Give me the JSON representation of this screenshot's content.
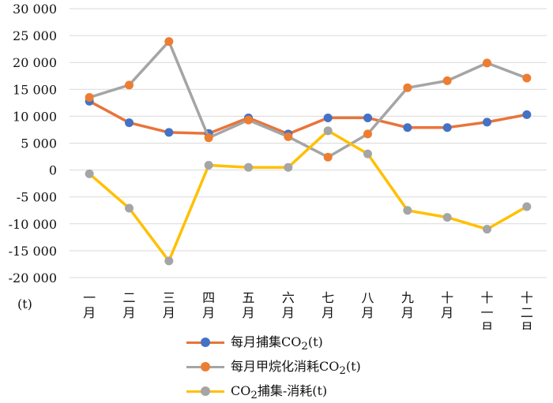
{
  "chart_data": {
    "type": "line",
    "categories": [
      [
        "一",
        "月"
      ],
      [
        "二",
        "月"
      ],
      [
        "三",
        "月"
      ],
      [
        "四",
        "月"
      ],
      [
        "五",
        "月"
      ],
      [
        "六",
        "月"
      ],
      [
        "七",
        "月"
      ],
      [
        "八",
        "月"
      ],
      [
        "九",
        "月"
      ],
      [
        "十",
        "月"
      ],
      [
        "十",
        "一",
        "月"
      ],
      [
        "十",
        "二",
        "月"
      ]
    ],
    "y_ticks": [
      {
        "value": 30000,
        "label": "30 000"
      },
      {
        "value": 25000,
        "label": "25 000"
      },
      {
        "value": 20000,
        "label": "20 000"
      },
      {
        "value": 15000,
        "label": "15 000"
      },
      {
        "value": 10000,
        "label": "10 000"
      },
      {
        "value": 5000,
        "label": "5 000"
      },
      {
        "value": 0,
        "label": "0"
      },
      {
        "value": -5000,
        "label": "-5 000"
      },
      {
        "value": -10000,
        "label": "-10 000"
      },
      {
        "value": -15000,
        "label": "-15 000"
      },
      {
        "value": -20000,
        "label": "-20 000"
      }
    ],
    "ylabel": "(t)",
    "ylim": [
      -20000,
      30000
    ],
    "grid": true,
    "legend_position": "bottom",
    "series": [
      {
        "name": "每月捕集CO₂(t)",
        "legend_parts": [
          "每月捕集CO",
          "2",
          "(t)"
        ],
        "color": "#E8743B",
        "marker_color": "#4472C4",
        "values": [
          12800,
          8800,
          7000,
          6800,
          9700,
          6700,
          9700,
          9700,
          7900,
          7900,
          8900,
          10300
        ]
      },
      {
        "name": "每月甲烷化消耗CO₂(t)",
        "legend_parts": [
          "每月甲烷化消耗CO",
          "2",
          "(t)"
        ],
        "color": "#A5A5A5",
        "marker_color": "#ED7D31",
        "values": [
          13500,
          15800,
          23900,
          6000,
          9300,
          6200,
          2400,
          6700,
          15300,
          16600,
          19900,
          17100
        ]
      },
      {
        "name": "CO₂捕集-消耗(t)",
        "legend_parts": [
          "CO",
          "2",
          "捕集-消耗(t)"
        ],
        "color": "#FFC000",
        "marker_color": "#A5A5A5",
        "values": [
          -700,
          -7100,
          -16900,
          900,
          500,
          500,
          7300,
          3000,
          -7500,
          -8800,
          -11000,
          -6800
        ]
      }
    ]
  }
}
